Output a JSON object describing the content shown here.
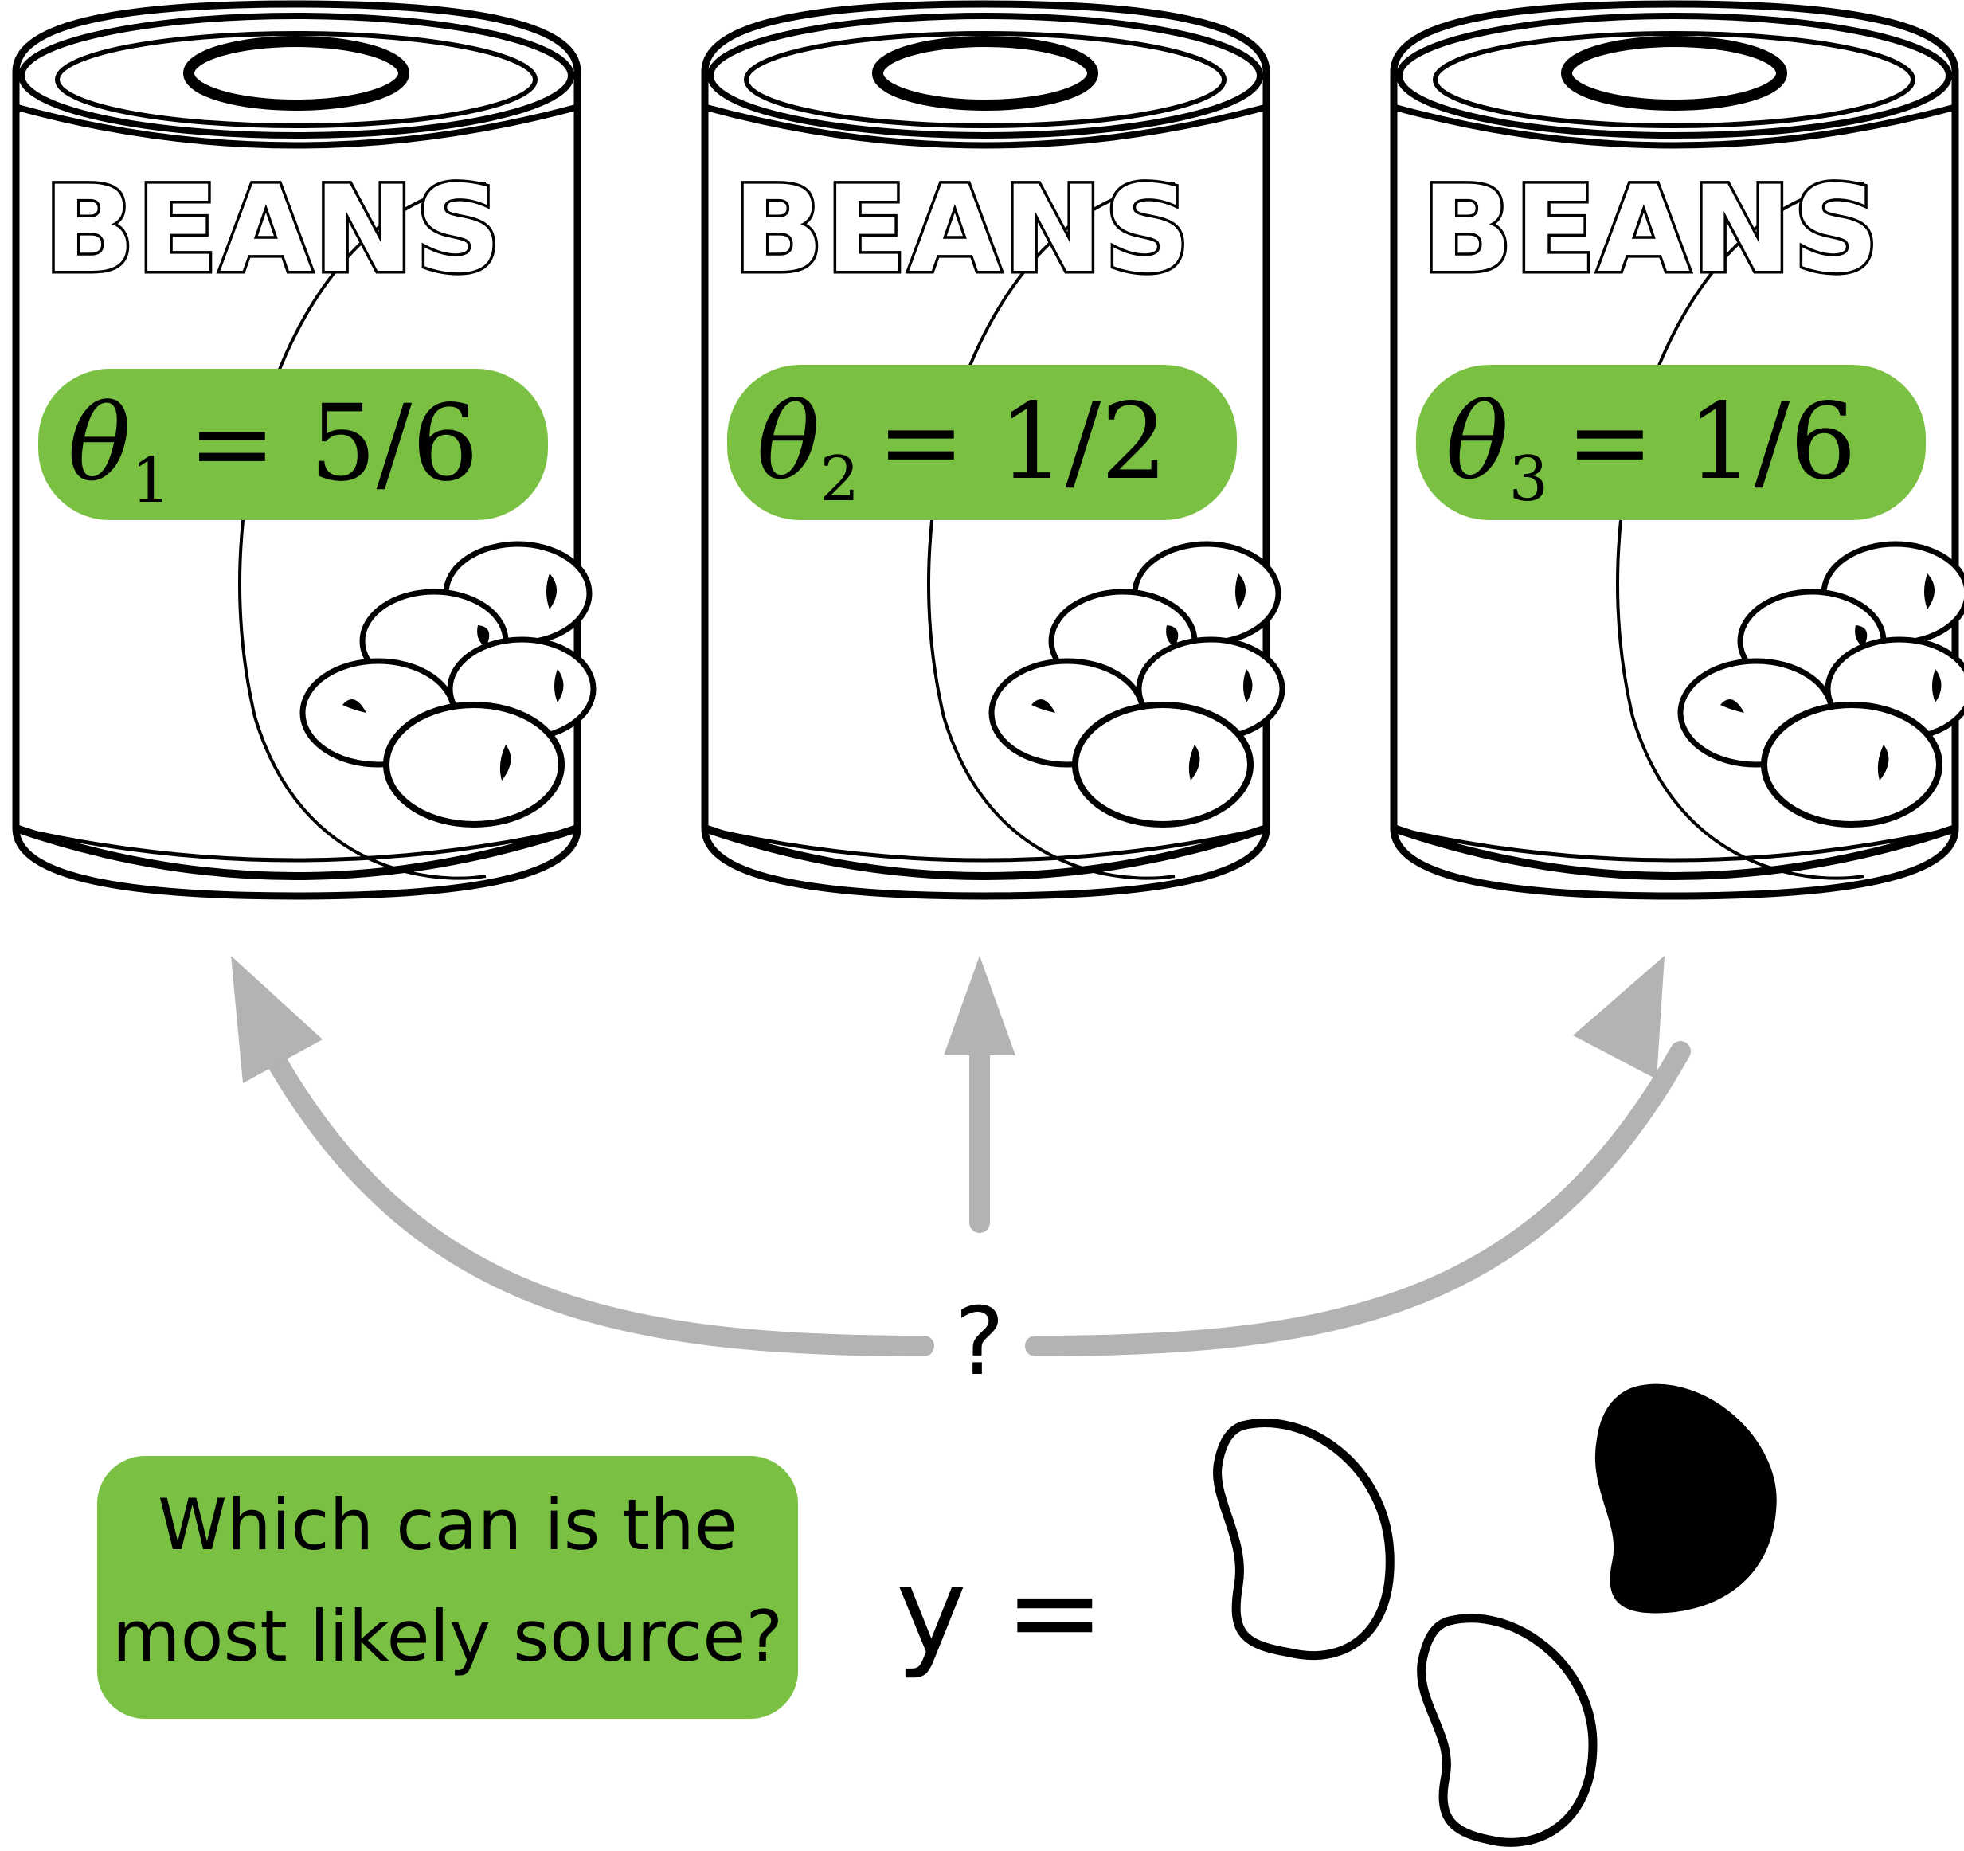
{
  "cans": [
    {
      "brand": "BEANS",
      "theta_symbol": "θ",
      "theta_index": "1",
      "theta_value": "= 5/6"
    },
    {
      "brand": "BEANS",
      "theta_symbol": "θ",
      "theta_index": "2",
      "theta_value": "= 1/2"
    },
    {
      "brand": "BEANS",
      "theta_symbol": "θ",
      "theta_index": "3",
      "theta_value": "= 1/6"
    }
  ],
  "question_mark": "?",
  "question_box": {
    "line1": "Which can is the",
    "line2": "most likely source?"
  },
  "observation": {
    "label": "y ="
  },
  "colors": {
    "label_green": "#7ac143",
    "arrow_gray": "#b3b3b3",
    "outline": "#000000"
  },
  "icons": [
    "can-icon",
    "bean-icon",
    "arrow-icon"
  ]
}
